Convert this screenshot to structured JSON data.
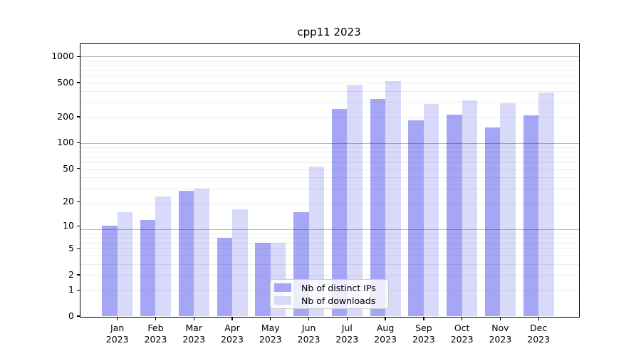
{
  "chart_data": {
    "type": "bar",
    "title": "cpp11 2023",
    "categories": [
      "Jan 2023",
      "Feb 2023",
      "Mar 2023",
      "Apr 2023",
      "May 2023",
      "Jun 2023",
      "Jul 2023",
      "Aug 2023",
      "Sep 2023",
      "Oct 2023",
      "Nov 2023",
      "Dec 2023"
    ],
    "series": [
      {
        "name": "Nb of distinct IPs",
        "color": "#a6a6f6",
        "values": [
          10,
          12,
          27,
          7,
          6,
          15,
          245,
          320,
          181,
          213,
          150,
          207
        ]
      },
      {
        "name": "Nb of downloads",
        "color": "#d9d9fa",
        "values": [
          15,
          23,
          29,
          16,
          6,
          52,
          475,
          520,
          283,
          310,
          287,
          380
        ]
      }
    ],
    "y_ticks": [
      0,
      1,
      2,
      5,
      10,
      20,
      50,
      100,
      200,
      500,
      1000
    ],
    "y_scale": "log10(value+1)",
    "ylim": [
      0,
      1400
    ],
    "grid": "horizontal log minor and major gridlines",
    "legend_position": "inside, lower center"
  }
}
